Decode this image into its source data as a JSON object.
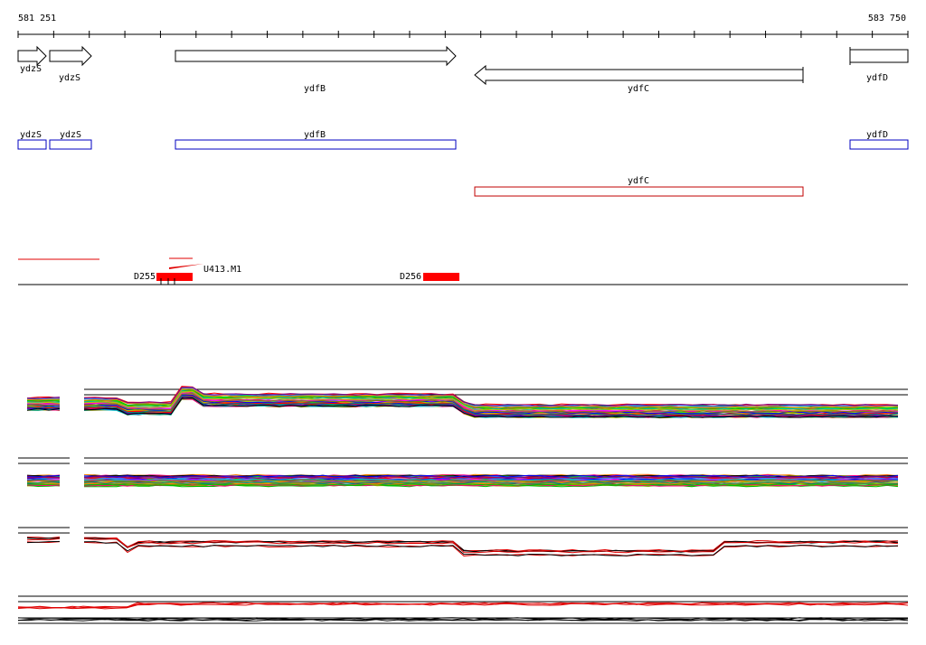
{
  "ruler": {
    "start": "581 251",
    "end": "583 750"
  },
  "genes": [
    {
      "label": "ydzS"
    },
    {
      "label": "ydzS"
    },
    {
      "label": "ydfB"
    },
    {
      "label": "ydfC"
    },
    {
      "label": "ydfD"
    }
  ],
  "annotations": [
    {
      "label": "ydzS"
    },
    {
      "label": "ydzS"
    },
    {
      "label": "ydfB"
    },
    {
      "label": "ydfD"
    },
    {
      "label": "ydfC"
    }
  ],
  "features": [
    {
      "label": "D255"
    },
    {
      "label": "U413.M1"
    },
    {
      "label": "D256"
    }
  ]
}
